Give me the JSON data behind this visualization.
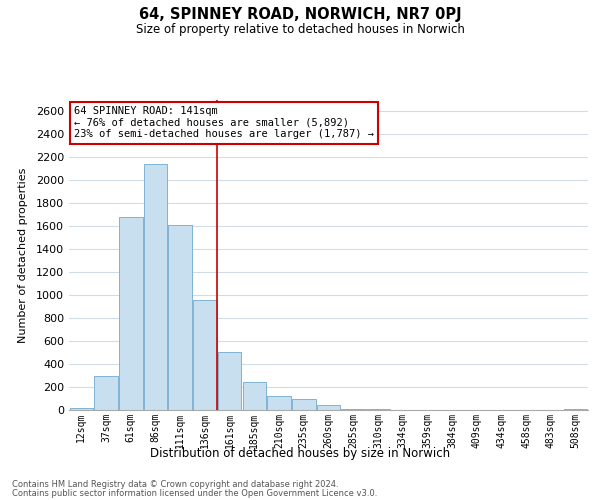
{
  "title": "64, SPINNEY ROAD, NORWICH, NR7 0PJ",
  "subtitle": "Size of property relative to detached houses in Norwich",
  "xlabel": "Distribution of detached houses by size in Norwich",
  "ylabel": "Number of detached properties",
  "bar_labels": [
    "12sqm",
    "37sqm",
    "61sqm",
    "86sqm",
    "111sqm",
    "136sqm",
    "161sqm",
    "185sqm",
    "210sqm",
    "235sqm",
    "260sqm",
    "285sqm",
    "310sqm",
    "334sqm",
    "359sqm",
    "384sqm",
    "409sqm",
    "434sqm",
    "458sqm",
    "483sqm",
    "508sqm"
  ],
  "bar_values": [
    15,
    295,
    1680,
    2140,
    1610,
    960,
    505,
    245,
    125,
    95,
    40,
    10,
    5,
    3,
    2,
    2,
    1,
    1,
    1,
    1,
    10
  ],
  "bar_color": "#c8dff0",
  "bar_edge_color": "#7fb3d3",
  "vline_x_index": 5,
  "vline_color": "#cc0000",
  "annotation_title": "64 SPINNEY ROAD: 141sqm",
  "annotation_line1": "← 76% of detached houses are smaller (5,892)",
  "annotation_line2": "23% of semi-detached houses are larger (1,787) →",
  "annotation_box_color": "#ffffff",
  "annotation_box_edge": "#cc0000",
  "footer_line1": "Contains HM Land Registry data © Crown copyright and database right 2024.",
  "footer_line2": "Contains public sector information licensed under the Open Government Licence v3.0.",
  "ylim": [
    0,
    2700
  ],
  "yticks": [
    0,
    200,
    400,
    600,
    800,
    1000,
    1200,
    1400,
    1600,
    1800,
    2000,
    2200,
    2400,
    2600
  ],
  "background_color": "#ffffff",
  "grid_color": "#d0dde8"
}
